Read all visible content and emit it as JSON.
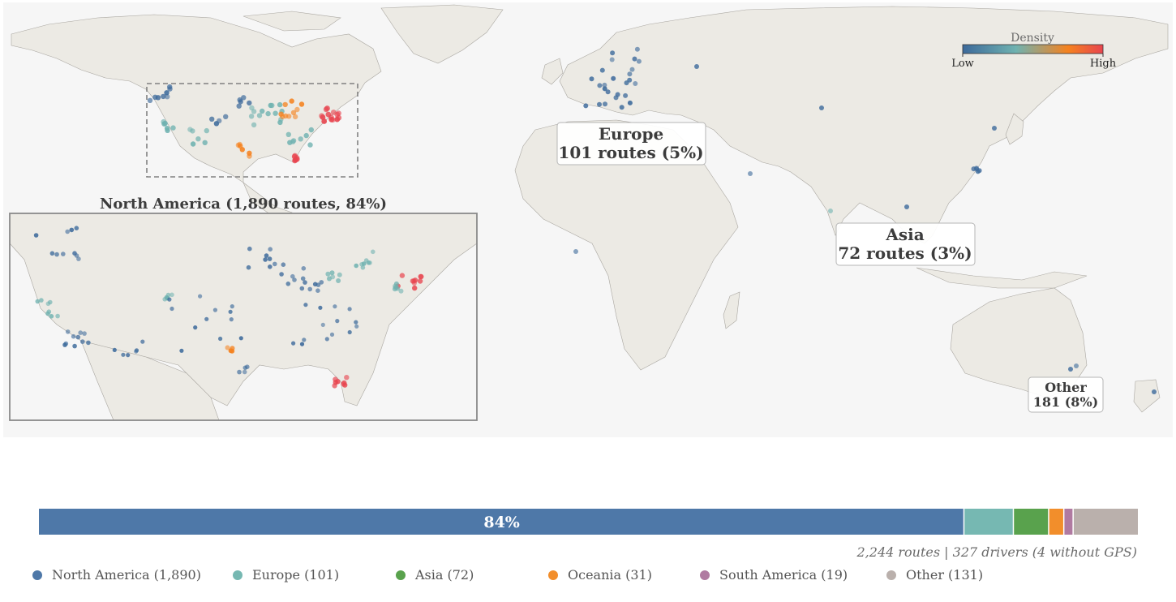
{
  "chart_data": {
    "type": "scatter",
    "map": {
      "regions": [
        {
          "key": "north_america",
          "title": "North America  (1,890 routes, 84%)"
        },
        {
          "key": "europe",
          "line1": "Europe",
          "line2": "101 routes (5%)"
        },
        {
          "key": "asia",
          "line1": "Asia",
          "line2": "72 routes (3%)"
        },
        {
          "key": "other",
          "line1": "Other",
          "line2": "181 (8%)"
        }
      ],
      "colorbar": {
        "title": "Density",
        "low": "Low",
        "high": "High",
        "colors": [
          "#3d6a9b",
          "#6fb2b0",
          "#f5821f",
          "#e8454f"
        ]
      }
    },
    "bar": {
      "type": "stacked-bar",
      "segments": [
        {
          "name": "North America",
          "value": 1890,
          "color": "#4e78a8",
          "label": "84%"
        },
        {
          "name": "Europe",
          "value": 101,
          "color": "#76b8b2"
        },
        {
          "name": "Asia",
          "value": 72,
          "color": "#59a24d"
        },
        {
          "name": "Oceania",
          "value": 31,
          "color": "#f28e2b"
        },
        {
          "name": "South America",
          "value": 19,
          "color": "#b07aa1"
        },
        {
          "name": "Other",
          "value": 131,
          "color": "#bab0ac"
        }
      ],
      "summary": "2,244 routes  |  327 drivers (4 without GPS)"
    },
    "legend": [
      {
        "label": "North America (1,890)",
        "color": "#4e78a8"
      },
      {
        "label": "Europe (101)",
        "color": "#76b8b2"
      },
      {
        "label": "Asia (72)",
        "color": "#59a24d"
      },
      {
        "label": "Oceania (31)",
        "color": "#f28e2b"
      },
      {
        "label": "South America (19)",
        "color": "#b07aa1"
      },
      {
        "label": "Other (131)",
        "color": "#bab0ac"
      }
    ]
  }
}
